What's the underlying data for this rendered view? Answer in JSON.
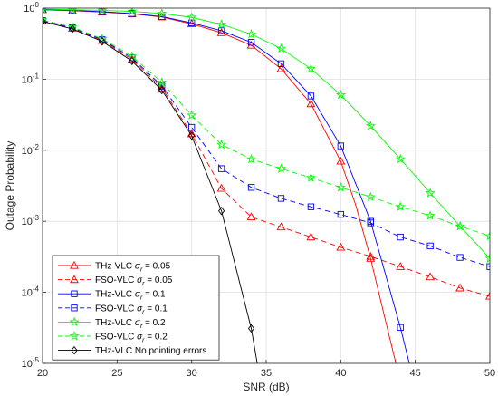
{
  "chart_data": {
    "type": "line",
    "xlabel": "SNR (dB)",
    "ylabel": "Outage Probability",
    "xlim": [
      20,
      50
    ],
    "ylim_log10": [
      -5,
      0
    ],
    "y_scale": "log",
    "grid": true,
    "legend_position": "bottom-left",
    "x_ticks": [
      20,
      25,
      30,
      35,
      40,
      45,
      50
    ],
    "x_tick_labels": [
      "20",
      "25",
      "30",
      "35",
      "40",
      "45",
      "50"
    ],
    "y_ticks": [
      1e-05,
      0.0001,
      0.001,
      0.01,
      0.1,
      1
    ],
    "y_tick_labels": [
      {
        "base": "10",
        "exp": "-5"
      },
      {
        "base": "10",
        "exp": "-4"
      },
      {
        "base": "10",
        "exp": "-3"
      },
      {
        "base": "10",
        "exp": "-2"
      },
      {
        "base": "10",
        "exp": "-1"
      },
      {
        "base": "10",
        "exp": "0"
      }
    ],
    "series": [
      {
        "name": "THz-VLC σr = 0.05",
        "legend_main": "THz-VLC ",
        "legend_sigma": "σ",
        "legend_sub": "r",
        "legend_rest": " = 0.05",
        "color": "#ff0000",
        "dash": "solid",
        "marker": "triangle",
        "line_points": [
          [
            20,
            0.95
          ],
          [
            22,
            0.92
          ],
          [
            24,
            0.88
          ],
          [
            26,
            0.83
          ],
          [
            28,
            0.75
          ],
          [
            30,
            0.6
          ],
          [
            32,
            0.45
          ],
          [
            34,
            0.3
          ],
          [
            36,
            0.14
          ],
          [
            38,
            0.045
          ],
          [
            40,
            0.007
          ],
          [
            41,
            0.0017
          ],
          [
            42,
            0.0003
          ],
          [
            43,
            4e-05
          ],
          [
            43.7,
            1e-05
          ]
        ],
        "markers": [
          [
            20,
            0.95
          ],
          [
            22,
            0.92
          ],
          [
            24,
            0.88
          ],
          [
            26,
            0.83
          ],
          [
            28,
            0.75
          ],
          [
            30,
            0.6
          ],
          [
            32,
            0.45
          ],
          [
            34,
            0.3
          ],
          [
            36,
            0.14
          ],
          [
            38,
            0.045
          ],
          [
            40,
            0.007
          ],
          [
            42,
            0.0003
          ]
        ]
      },
      {
        "name": "FSO-VLC σr = 0.05",
        "legend_main": "FSO-VLC ",
        "legend_sigma": "σ",
        "legend_sub": "r",
        "legend_rest": " = 0.05",
        "color": "#ff0000",
        "dash": "dashed",
        "marker": "triangle",
        "line_points": [
          [
            20,
            0.66
          ],
          [
            22,
            0.52
          ],
          [
            24,
            0.35
          ],
          [
            26,
            0.19
          ],
          [
            28,
            0.075
          ],
          [
            30,
            0.017
          ],
          [
            32,
            0.0029
          ],
          [
            34,
            0.00115
          ],
          [
            36,
            0.00083
          ],
          [
            38,
            0.0006
          ],
          [
            40,
            0.00043
          ],
          [
            42,
            0.00032
          ],
          [
            44,
            0.00023
          ],
          [
            46,
            0.000165
          ],
          [
            48,
            0.000115
          ],
          [
            50,
            8.8e-05
          ]
        ],
        "markers": [
          [
            20,
            0.66
          ],
          [
            22,
            0.52
          ],
          [
            24,
            0.35
          ],
          [
            26,
            0.19
          ],
          [
            28,
            0.075
          ],
          [
            30,
            0.017
          ],
          [
            32,
            0.0029
          ],
          [
            34,
            0.00115
          ],
          [
            36,
            0.00083
          ],
          [
            38,
            0.0006
          ],
          [
            40,
            0.00043
          ],
          [
            42,
            0.00032
          ],
          [
            44,
            0.00023
          ],
          [
            46,
            0.000165
          ],
          [
            48,
            0.000115
          ],
          [
            50,
            8.8e-05
          ]
        ]
      },
      {
        "name": "THz-VLC σr = 0.1",
        "legend_main": "THz-VLC ",
        "legend_sigma": "σ",
        "legend_sub": "r",
        "legend_rest": " = 0.1",
        "color": "#0000ff",
        "dash": "solid",
        "marker": "square",
        "line_points": [
          [
            20,
            0.96
          ],
          [
            22,
            0.93
          ],
          [
            24,
            0.89
          ],
          [
            26,
            0.84
          ],
          [
            28,
            0.76
          ],
          [
            30,
            0.62
          ],
          [
            32,
            0.48
          ],
          [
            34,
            0.33
          ],
          [
            36,
            0.165
          ],
          [
            38,
            0.058
          ],
          [
            40,
            0.0115
          ],
          [
            42,
            0.001
          ],
          [
            44,
            3.2e-05
          ],
          [
            44.6,
            1e-05
          ]
        ],
        "markers": [
          [
            20,
            0.96
          ],
          [
            22,
            0.93
          ],
          [
            24,
            0.89
          ],
          [
            26,
            0.84
          ],
          [
            28,
            0.76
          ],
          [
            30,
            0.62
          ],
          [
            32,
            0.48
          ],
          [
            34,
            0.33
          ],
          [
            36,
            0.165
          ],
          [
            38,
            0.058
          ],
          [
            40,
            0.0115
          ],
          [
            42,
            0.001
          ],
          [
            44,
            3.2e-05
          ]
        ]
      },
      {
        "name": "FSO-VLC σr = 0.1",
        "legend_main": "FSO-VLC ",
        "legend_sigma": "σ",
        "legend_sub": "r",
        "legend_rest": " = 0.1",
        "color": "#0000ff",
        "dash": "dashed",
        "marker": "square",
        "line_points": [
          [
            20,
            0.67
          ],
          [
            22,
            0.53
          ],
          [
            24,
            0.36
          ],
          [
            26,
            0.2
          ],
          [
            28,
            0.08
          ],
          [
            30,
            0.021
          ],
          [
            32,
            0.0055
          ],
          [
            34,
            0.003
          ],
          [
            36,
            0.0021
          ],
          [
            38,
            0.0016
          ],
          [
            40,
            0.00125
          ],
          [
            42,
            0.00095
          ],
          [
            44,
            0.0006
          ],
          [
            46,
            0.00045
          ],
          [
            48,
            0.00031
          ],
          [
            50,
            0.00023
          ]
        ],
        "markers": [
          [
            20,
            0.67
          ],
          [
            22,
            0.53
          ],
          [
            24,
            0.36
          ],
          [
            26,
            0.2
          ],
          [
            28,
            0.08
          ],
          [
            30,
            0.021
          ],
          [
            32,
            0.0055
          ],
          [
            34,
            0.003
          ],
          [
            36,
            0.0021
          ],
          [
            38,
            0.0016
          ],
          [
            40,
            0.00125
          ],
          [
            42,
            0.00095
          ],
          [
            44,
            0.0006
          ],
          [
            46,
            0.00045
          ],
          [
            48,
            0.00031
          ],
          [
            50,
            0.00023
          ]
        ]
      },
      {
        "name": "THz-VLC σr = 0.2",
        "legend_main": "THz-VLC ",
        "legend_sigma": "σ",
        "legend_sub": "r",
        "legend_rest": " = 0.2",
        "color": "#00ff00",
        "dash": "solid",
        "marker": "star",
        "line_points": [
          [
            20,
            0.97
          ],
          [
            22,
            0.95
          ],
          [
            24,
            0.93
          ],
          [
            26,
            0.9
          ],
          [
            28,
            0.84
          ],
          [
            30,
            0.74
          ],
          [
            32,
            0.59
          ],
          [
            34,
            0.43
          ],
          [
            36,
            0.27
          ],
          [
            38,
            0.14
          ],
          [
            40,
            0.06
          ],
          [
            42,
            0.022
          ],
          [
            44,
            0.0075
          ],
          [
            46,
            0.0025
          ],
          [
            48,
            0.00085
          ],
          [
            50,
            0.0003
          ]
        ],
        "markers": [
          [
            20,
            0.97
          ],
          [
            22,
            0.95
          ],
          [
            24,
            0.93
          ],
          [
            26,
            0.9
          ],
          [
            28,
            0.84
          ],
          [
            30,
            0.74
          ],
          [
            32,
            0.59
          ],
          [
            34,
            0.43
          ],
          [
            36,
            0.27
          ],
          [
            38,
            0.14
          ],
          [
            40,
            0.06
          ],
          [
            42,
            0.022
          ],
          [
            44,
            0.0075
          ],
          [
            46,
            0.0025
          ],
          [
            48,
            0.00085
          ],
          [
            50,
            0.0003
          ]
        ]
      },
      {
        "name": "FSO-VLC σr = 0.2",
        "legend_main": "FSO-VLC ",
        "legend_sigma": "σ",
        "legend_sub": "r",
        "legend_rest": " = 0.2",
        "color": "#00ff00",
        "dash": "dashed",
        "marker": "star",
        "line_points": [
          [
            20,
            0.68
          ],
          [
            22,
            0.54
          ],
          [
            24,
            0.37
          ],
          [
            26,
            0.21
          ],
          [
            28,
            0.09
          ],
          [
            30,
            0.031
          ],
          [
            32,
            0.012
          ],
          [
            34,
            0.0075
          ],
          [
            36,
            0.0055
          ],
          [
            38,
            0.0041
          ],
          [
            40,
            0.003
          ],
          [
            42,
            0.0022
          ],
          [
            44,
            0.0016
          ],
          [
            46,
            0.0012
          ],
          [
            48,
            0.00085
          ],
          [
            50,
            0.00062
          ]
        ],
        "markers": [
          [
            20,
            0.68
          ],
          [
            22,
            0.54
          ],
          [
            24,
            0.37
          ],
          [
            26,
            0.21
          ],
          [
            28,
            0.09
          ],
          [
            30,
            0.031
          ],
          [
            32,
            0.012
          ],
          [
            34,
            0.0075
          ],
          [
            36,
            0.0055
          ],
          [
            38,
            0.0041
          ],
          [
            40,
            0.003
          ],
          [
            42,
            0.0022
          ],
          [
            44,
            0.0016
          ],
          [
            46,
            0.0012
          ],
          [
            48,
            0.00085
          ],
          [
            50,
            0.00062
          ]
        ]
      },
      {
        "name": "THz-VLC No pointing errors",
        "legend_main": "THz-VLC No pointing errors",
        "legend_sigma": "",
        "legend_sub": "",
        "legend_rest": "",
        "color": "#000000",
        "dash": "solid",
        "marker": "diamond",
        "line_points": [
          [
            20,
            0.65
          ],
          [
            22,
            0.51
          ],
          [
            24,
            0.34
          ],
          [
            26,
            0.18
          ],
          [
            28,
            0.07
          ],
          [
            30,
            0.016
          ],
          [
            32,
            0.0014
          ],
          [
            34,
            3.1e-05
          ],
          [
            34.4,
            1e-05
          ]
        ],
        "markers": [
          [
            20,
            0.65
          ],
          [
            22,
            0.51
          ],
          [
            24,
            0.34
          ],
          [
            26,
            0.18
          ],
          [
            28,
            0.07
          ],
          [
            30,
            0.016
          ],
          [
            32,
            0.0014
          ],
          [
            34,
            3.1e-05
          ]
        ]
      }
    ]
  }
}
